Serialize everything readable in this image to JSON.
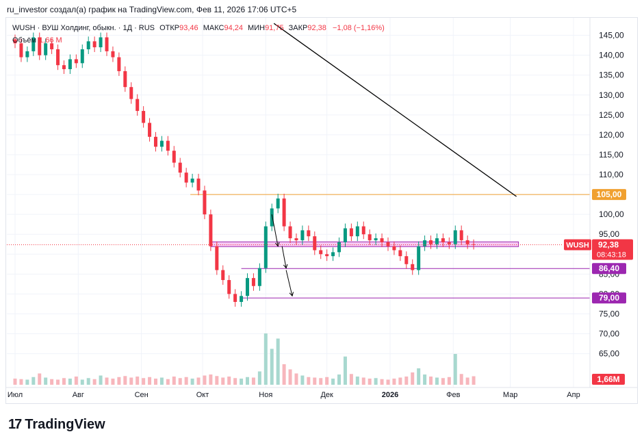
{
  "caption": "ru_investor создал(а) график на TradingView.com, Фев 11, 2026 17:06 UTC+5",
  "legend": {
    "symbol": "WUSH · ВУШ Холдинг, обыкн. · 1Д · RUS",
    "open_label": "ОТКР",
    "open_value": "93,46",
    "high_label": "МАКС",
    "high_value": "94,24",
    "low_label": "МИН",
    "low_value": "91,75",
    "close_label": "ЗАКР",
    "close_value": "92,38",
    "change": "−1,08 (−1,16%)",
    "volume_label": "Объём",
    "volume_value": "1,66 M"
  },
  "brand": {
    "name": "TradingView",
    "mark": "17"
  },
  "colors": {
    "up": "#089981",
    "down": "#f23645",
    "level_orange": "#f0a030",
    "level_purple": "#9c27b0",
    "zone_fill": "#f6c9f2",
    "zone_stroke": "#9c27b0",
    "trend": "#000000"
  },
  "chart_data": {
    "type": "candlestick",
    "y_ticks": [
      "145,00",
      "140,00",
      "135,00",
      "130,00",
      "125,00",
      "120,00",
      "115,00",
      "110,00",
      "105,00",
      "100,00",
      "95,00",
      "90,00",
      "85,00",
      "80,00",
      "75,00",
      "70,00",
      "65,00"
    ],
    "y_tick_values": [
      145,
      140,
      135,
      130,
      125,
      120,
      115,
      110,
      105,
      100,
      95,
      90,
      85,
      80,
      75,
      70,
      65
    ],
    "ylim": [
      62,
      147
    ],
    "x_ticks": [
      "Июл",
      "Авг",
      "Сен",
      "Окт",
      "Ноя",
      "Дек",
      "2026",
      "Фев",
      "Мар",
      "Апр"
    ],
    "x_tick_dates": [
      "2025-07-01",
      "2025-08-01",
      "2025-09-01",
      "2025-10-01",
      "2025-11-01",
      "2025-12-01",
      "2026-01-01",
      "2026-02-01",
      "2026-03-01",
      "2026-04-01"
    ],
    "last_price": {
      "symbol": "WUSH",
      "value": "92,38",
      "countdown": "08:43:18",
      "price": 92.38
    },
    "price_labels": [
      {
        "text": "105,00",
        "price": 105,
        "color": "#f0a030"
      },
      {
        "text": "86,40",
        "price": 86.4,
        "color": "#9c27b0"
      },
      {
        "text": "79,00",
        "price": 79,
        "color": "#9c27b0"
      }
    ],
    "volume_label": "1,66M",
    "levels": [
      {
        "price": 105,
        "from": "2025-09-25",
        "to": "2026-03-08",
        "color": "#f0a030"
      },
      {
        "price": 86.4,
        "from": "2025-10-20",
        "to": "2026-03-08",
        "color": "#9c27b0"
      },
      {
        "price": 79,
        "from": "2025-10-20",
        "to": "2026-03-08",
        "color": "#9c27b0"
      }
    ],
    "zone": {
      "top": 93.1,
      "bottom": 91.9,
      "from": "2025-10-05",
      "to": "2026-03-05"
    },
    "trendline": {
      "from": {
        "date": "2025-11-05",
        "price": 148
      },
      "to": {
        "date": "2026-03-04",
        "price": 104.5
      }
    },
    "arrows": [
      {
        "from": {
          "date": "2025-11-04",
          "price": 100
        },
        "to": {
          "date": "2025-11-07",
          "price": 92
        }
      },
      {
        "from": {
          "date": "2025-11-09",
          "price": 92
        },
        "to": {
          "date": "2025-11-11",
          "price": 86.5
        }
      },
      {
        "from": {
          "date": "2025-11-11",
          "price": 86
        },
        "to": {
          "date": "2025-11-14",
          "price": 79.5
        }
      }
    ],
    "series": [
      {
        "date": "2025-07-01",
        "close": 143.0,
        "volume": 1.2
      },
      {
        "date": "2025-07-04",
        "close": 139.5,
        "volume": 1.1
      },
      {
        "date": "2025-07-07",
        "close": 141.0,
        "volume": 1.0
      },
      {
        "date": "2025-07-10",
        "close": 144.5,
        "volume": 1.5
      },
      {
        "date": "2025-07-13",
        "close": 140.0,
        "volume": 2.2
      },
      {
        "date": "2025-07-16",
        "close": 143.0,
        "volume": 1.4
      },
      {
        "date": "2025-07-19",
        "close": 141.5,
        "volume": 1.1
      },
      {
        "date": "2025-07-22",
        "close": 137.5,
        "volume": 1.0
      },
      {
        "date": "2025-07-25",
        "close": 136.5,
        "volume": 1.3
      },
      {
        "date": "2025-07-28",
        "close": 139.0,
        "volume": 1.2
      },
      {
        "date": "2025-07-31",
        "close": 138.0,
        "volume": 1.6
      },
      {
        "date": "2025-08-03",
        "close": 141.5,
        "volume": 1.0
      },
      {
        "date": "2025-08-06",
        "close": 143.5,
        "volume": 1.3
      },
      {
        "date": "2025-08-09",
        "close": 142.0,
        "volume": 1.1
      },
      {
        "date": "2025-08-12",
        "close": 144.5,
        "volume": 1.8
      },
      {
        "date": "2025-08-15",
        "close": 141.0,
        "volume": 1.4
      },
      {
        "date": "2025-08-18",
        "close": 139.5,
        "volume": 1.2
      },
      {
        "date": "2025-08-21",
        "close": 136.0,
        "volume": 1.5
      },
      {
        "date": "2025-08-24",
        "close": 132.0,
        "volume": 1.7
      },
      {
        "date": "2025-08-27",
        "close": 129.0,
        "volume": 1.4
      },
      {
        "date": "2025-08-30",
        "close": 126.0,
        "volume": 1.6
      },
      {
        "date": "2025-09-02",
        "close": 123.0,
        "volume": 1.3
      },
      {
        "date": "2025-09-05",
        "close": 119.5,
        "volume": 1.5
      },
      {
        "date": "2025-09-08",
        "close": 117.0,
        "volume": 1.2
      },
      {
        "date": "2025-09-11",
        "close": 118.5,
        "volume": 1.4
      },
      {
        "date": "2025-09-14",
        "close": 116.0,
        "volume": 1.1
      },
      {
        "date": "2025-09-17",
        "close": 113.0,
        "volume": 1.6
      },
      {
        "date": "2025-09-20",
        "close": 110.5,
        "volume": 1.3
      },
      {
        "date": "2025-09-23",
        "close": 108.0,
        "volume": 1.5
      },
      {
        "date": "2025-09-26",
        "close": 109.0,
        "volume": 1.2
      },
      {
        "date": "2025-09-29",
        "close": 106.0,
        "volume": 1.4
      },
      {
        "date": "2025-10-02",
        "close": 100.0,
        "volume": 1.8
      },
      {
        "date": "2025-10-05",
        "close": 92.0,
        "volume": 2.0
      },
      {
        "date": "2025-10-08",
        "close": 86.0,
        "volume": 1.7
      },
      {
        "date": "2025-10-11",
        "close": 83.5,
        "volume": 1.4
      },
      {
        "date": "2025-10-14",
        "close": 80.0,
        "volume": 1.6
      },
      {
        "date": "2025-10-17",
        "close": 78.0,
        "volume": 1.3
      },
      {
        "date": "2025-10-20",
        "close": 79.5,
        "volume": 1.2
      },
      {
        "date": "2025-10-23",
        "close": 84.0,
        "volume": 1.5
      },
      {
        "date": "2025-10-26",
        "close": 82.0,
        "volume": 1.4
      },
      {
        "date": "2025-10-29",
        "close": 86.5,
        "volume": 2.6
      },
      {
        "date": "2025-11-01",
        "close": 97.0,
        "volume": 10.0
      },
      {
        "date": "2025-11-04",
        "close": 101.5,
        "volume": 7.0
      },
      {
        "date": "2025-11-07",
        "close": 104.0,
        "volume": 9.0
      },
      {
        "date": "2025-11-10",
        "close": 97.0,
        "volume": 4.0
      },
      {
        "date": "2025-11-13",
        "close": 94.0,
        "volume": 3.0
      },
      {
        "date": "2025-11-16",
        "close": 93.5,
        "volume": 2.2
      },
      {
        "date": "2025-11-19",
        "close": 96.0,
        "volume": 1.8
      },
      {
        "date": "2025-11-22",
        "close": 94.5,
        "volume": 1.5
      },
      {
        "date": "2025-11-25",
        "close": 91.0,
        "volume": 1.4
      },
      {
        "date": "2025-11-28",
        "close": 90.0,
        "volume": 1.3
      },
      {
        "date": "2025-12-01",
        "close": 89.5,
        "volume": 1.5
      },
      {
        "date": "2025-12-04",
        "close": 90.5,
        "volume": 1.2
      },
      {
        "date": "2025-12-07",
        "close": 93.0,
        "volume": 2.0
      },
      {
        "date": "2025-12-10",
        "close": 96.5,
        "volume": 5.5
      },
      {
        "date": "2025-12-13",
        "close": 94.5,
        "volume": 2.1
      },
      {
        "date": "2025-12-16",
        "close": 97.0,
        "volume": 1.6
      },
      {
        "date": "2025-12-19",
        "close": 95.0,
        "volume": 1.4
      },
      {
        "date": "2025-12-22",
        "close": 93.5,
        "volume": 1.2
      },
      {
        "date": "2025-12-25",
        "close": 94.0,
        "volume": 1.3
      },
      {
        "date": "2025-12-28",
        "close": 93.0,
        "volume": 1.1
      },
      {
        "date": "2025-12-31",
        "close": 92.0,
        "volume": 1.0
      },
      {
        "date": "2026-01-03",
        "close": 91.0,
        "volume": 1.2
      },
      {
        "date": "2026-01-06",
        "close": 89.5,
        "volume": 1.4
      },
      {
        "date": "2026-01-09",
        "close": 87.5,
        "volume": 1.6
      },
      {
        "date": "2026-01-12",
        "close": 86.0,
        "volume": 2.4
      },
      {
        "date": "2026-01-15",
        "close": 92.0,
        "volume": 3.2
      },
      {
        "date": "2026-01-18",
        "close": 93.5,
        "volume": 2.0
      },
      {
        "date": "2026-01-21",
        "close": 92.5,
        "volume": 1.6
      },
      {
        "date": "2026-01-24",
        "close": 94.0,
        "volume": 1.4
      },
      {
        "date": "2026-01-27",
        "close": 93.0,
        "volume": 1.3
      },
      {
        "date": "2026-01-30",
        "close": 92.5,
        "volume": 1.5
      },
      {
        "date": "2026-02-02",
        "close": 96.0,
        "volume": 6.0
      },
      {
        "date": "2026-02-05",
        "close": 93.5,
        "volume": 2.1
      },
      {
        "date": "2026-02-08",
        "close": 92.5,
        "volume": 1.4
      },
      {
        "date": "2026-02-11",
        "close": 92.38,
        "volume": 1.66
      }
    ]
  }
}
